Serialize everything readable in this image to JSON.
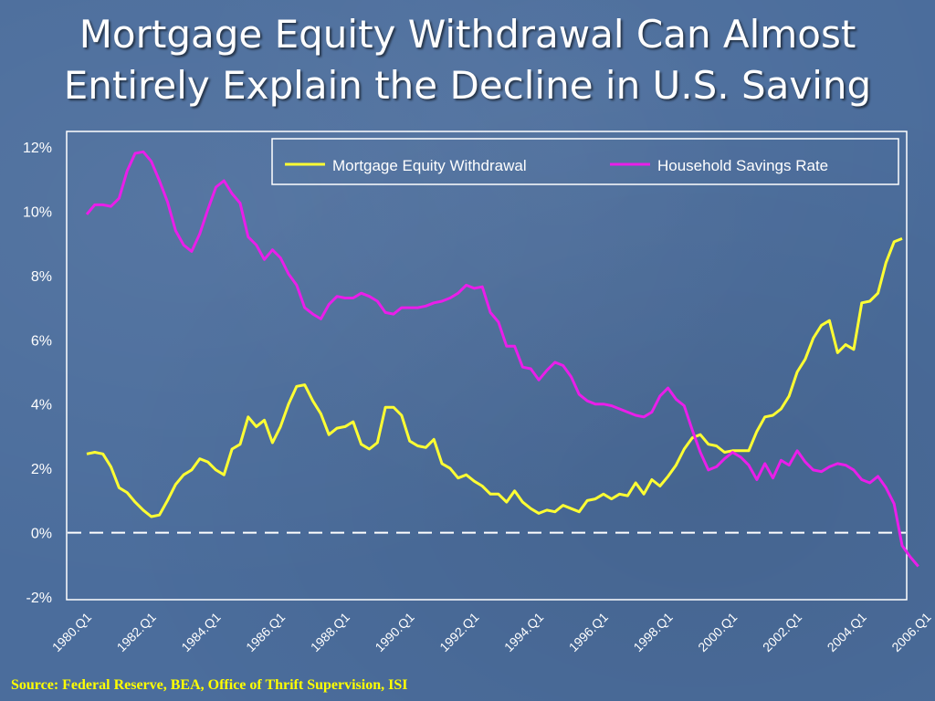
{
  "slide": {
    "title_line1": "Mortgage Equity Withdrawal Can Almost",
    "title_line2": "Entirely Explain the Decline in U.S. Saving",
    "source": "Source: Federal Reserve, BEA, Office of Thrift Supervision, ISI"
  },
  "colors": {
    "background": "#4b6d9c",
    "mew": "#ffff33",
    "savings": "#e91ee9",
    "text": "#ffffff",
    "source_text": "#ffff00"
  },
  "chart_data": {
    "type": "line",
    "title": "",
    "xlabel": "",
    "ylabel": "",
    "ylim": [
      -2,
      12
    ],
    "y_ticks": [
      -2,
      0,
      2,
      4,
      6,
      8,
      10,
      12
    ],
    "y_tick_labels": [
      "-2%",
      "0%",
      "2%",
      "4%",
      "6%",
      "8%",
      "10%",
      "12%"
    ],
    "x_tick_labels": [
      "1980.Q1",
      "1982.Q1",
      "1984.Q1",
      "1986.Q1",
      "1988.Q1",
      "1990.Q1",
      "1992.Q1",
      "1994.Q1",
      "1996.Q1",
      "1998.Q1",
      "2000.Q1",
      "2002.Q1",
      "2004.Q1",
      "2006.Q1"
    ],
    "x_start": "1980.Q1",
    "grid": false,
    "zero_line": "dashed",
    "legend_position": "top-right",
    "series": [
      {
        "name": "Mortgage Equity Withdrawal",
        "values": [
          2.45,
          2.5,
          2.45,
          2.05,
          1.4,
          1.25,
          0.95,
          0.7,
          0.5,
          0.55,
          1.0,
          1.5,
          1.8,
          1.95,
          2.3,
          2.2,
          1.95,
          1.8,
          2.6,
          2.75,
          3.6,
          3.3,
          3.5,
          2.8,
          3.3,
          4.0,
          4.55,
          4.6,
          4.1,
          3.7,
          3.05,
          3.25,
          3.3,
          3.45,
          2.75,
          2.6,
          2.8,
          3.9,
          3.9,
          3.65,
          2.85,
          2.7,
          2.65,
          2.9,
          2.15,
          2.0,
          1.7,
          1.8,
          1.6,
          1.45,
          1.2,
          1.2,
          0.95,
          1.3,
          0.95,
          0.75,
          0.6,
          0.7,
          0.65,
          0.85,
          0.75,
          0.65,
          1.0,
          1.05,
          1.2,
          1.05,
          1.2,
          1.15,
          1.55,
          1.2,
          1.65,
          1.45,
          1.75,
          2.1,
          2.6,
          2.95,
          3.05,
          2.75,
          2.7,
          2.5,
          2.55,
          2.55,
          2.55,
          3.15,
          3.6,
          3.65,
          3.85,
          4.25,
          5.0,
          5.4,
          6.05,
          6.45,
          6.6,
          5.6,
          5.85,
          5.7,
          7.15,
          7.2,
          7.45,
          8.4,
          9.05,
          9.15
        ]
      },
      {
        "name": "Household Savings Rate",
        "values": [
          9.9,
          10.2,
          10.2,
          10.15,
          10.4,
          11.25,
          11.8,
          11.85,
          11.55,
          10.95,
          10.3,
          9.4,
          8.95,
          8.75,
          9.3,
          10.05,
          10.75,
          10.95,
          10.55,
          10.25,
          9.2,
          8.95,
          8.5,
          8.8,
          8.55,
          8.05,
          7.7,
          7.0,
          6.8,
          6.65,
          7.1,
          7.35,
          7.3,
          7.3,
          7.45,
          7.35,
          7.2,
          6.85,
          6.8,
          7.0,
          7.0,
          7.0,
          7.05,
          7.15,
          7.2,
          7.3,
          7.45,
          7.7,
          7.6,
          7.65,
          6.85,
          6.55,
          5.8,
          5.8,
          5.15,
          5.1,
          4.75,
          5.05,
          5.3,
          5.2,
          4.85,
          4.3,
          4.1,
          4.0,
          4.0,
          3.95,
          3.85,
          3.75,
          3.65,
          3.6,
          3.75,
          4.25,
          4.5,
          4.15,
          3.95,
          3.2,
          2.5,
          1.95,
          2.05,
          2.3,
          2.5,
          2.35,
          2.1,
          1.65,
          2.15,
          1.7,
          2.25,
          2.1,
          2.55,
          2.2,
          1.95,
          1.9,
          2.05,
          2.15,
          2.1,
          1.95,
          1.65,
          1.55,
          1.75,
          1.4,
          0.9,
          -0.4,
          -0.75,
          -1.05
        ]
      }
    ]
  }
}
